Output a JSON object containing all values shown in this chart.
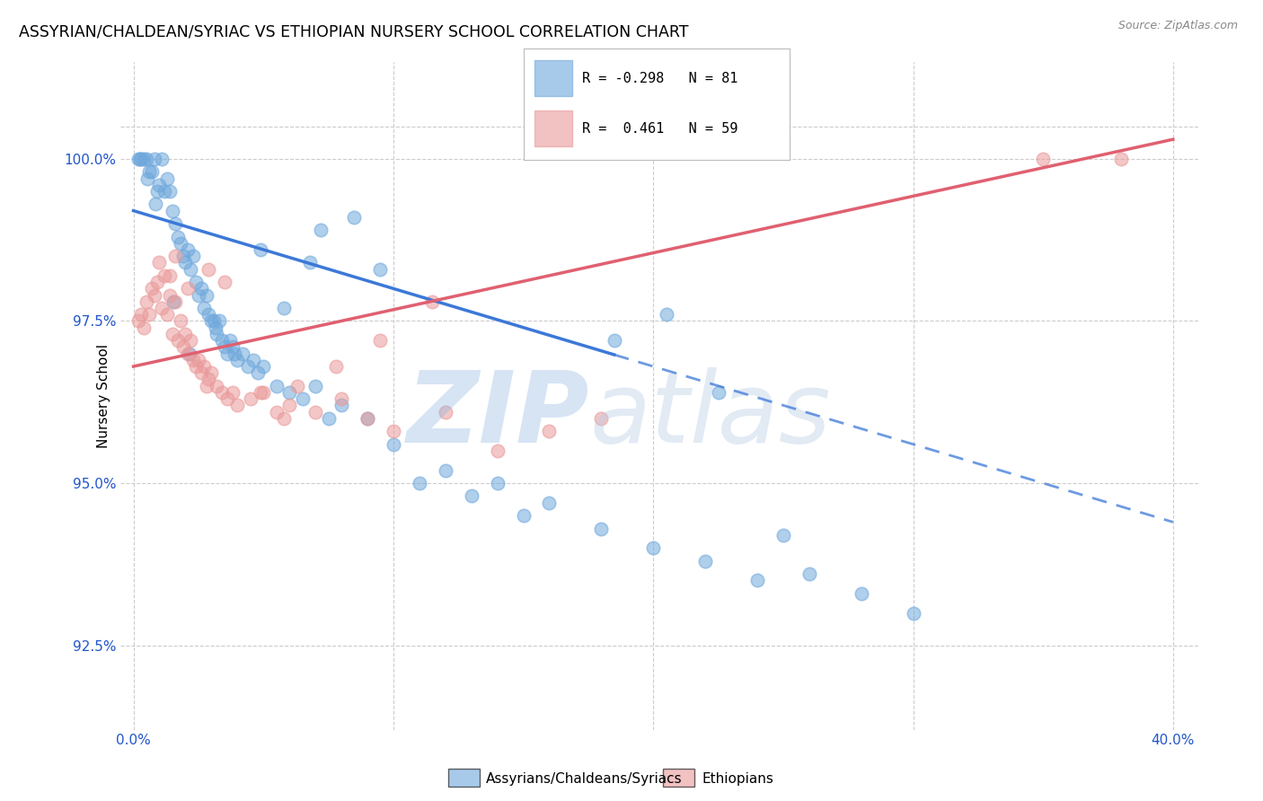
{
  "title": "ASSYRIAN/CHALDEAN/SYRIAC VS ETHIOPIAN NURSERY SCHOOL CORRELATION CHART",
  "source": "Source: ZipAtlas.com",
  "xlabel_blue": "Assyrians/Chaldeans/Syriacs",
  "xlabel_pink": "Ethiopians",
  "ylabel": "Nursery School",
  "xlim": [
    -0.5,
    41.0
  ],
  "ylim": [
    91.2,
    101.5
  ],
  "xticks": [
    0.0,
    10.0,
    20.0,
    30.0,
    40.0
  ],
  "xtick_labels": [
    "0.0%",
    "",
    "",
    "",
    "40.0%"
  ],
  "yticks": [
    92.5,
    95.0,
    97.5,
    100.0
  ],
  "ytick_labels": [
    "92.5%",
    "95.0%",
    "97.5%",
    "100.0%"
  ],
  "blue_R": -0.298,
  "blue_N": 81,
  "pink_R": 0.461,
  "pink_N": 59,
  "blue_color": "#6fa8dc",
  "pink_color": "#ea9999",
  "blue_line_color": "#3c78d8",
  "pink_line_color": "#e06070",
  "blue_scatter_x": [
    0.2,
    0.3,
    0.4,
    0.5,
    0.6,
    0.7,
    0.8,
    0.9,
    1.0,
    1.1,
    1.2,
    1.3,
    1.4,
    1.5,
    1.6,
    1.7,
    1.8,
    1.9,
    2.0,
    2.1,
    2.2,
    2.3,
    2.4,
    2.5,
    2.6,
    2.7,
    2.8,
    2.9,
    3.0,
    3.1,
    3.2,
    3.3,
    3.4,
    3.5,
    3.6,
    3.7,
    3.8,
    3.9,
    4.0,
    4.2,
    4.4,
    4.6,
    4.8,
    5.0,
    5.5,
    6.0,
    6.5,
    7.0,
    7.5,
    8.0,
    9.0,
    10.0,
    11.0,
    12.0,
    13.0,
    14.0,
    15.0,
    16.0,
    18.0,
    20.0,
    22.0,
    24.0,
    25.0,
    26.0,
    28.0,
    30.0,
    18.5,
    20.5,
    22.5,
    9.5,
    8.5,
    7.2,
    6.8,
    5.8,
    4.9,
    3.15,
    2.15,
    1.55,
    0.85,
    0.55,
    0.25
  ],
  "blue_scatter_y": [
    100.0,
    100.0,
    100.0,
    100.0,
    99.8,
    99.8,
    100.0,
    99.5,
    99.6,
    100.0,
    99.5,
    99.7,
    99.5,
    99.2,
    99.0,
    98.8,
    98.7,
    98.5,
    98.4,
    98.6,
    98.3,
    98.5,
    98.1,
    97.9,
    98.0,
    97.7,
    97.9,
    97.6,
    97.5,
    97.5,
    97.3,
    97.5,
    97.2,
    97.1,
    97.0,
    97.2,
    97.1,
    97.0,
    96.9,
    97.0,
    96.8,
    96.9,
    96.7,
    96.8,
    96.5,
    96.4,
    96.3,
    96.5,
    96.0,
    96.2,
    96.0,
    95.6,
    95.0,
    95.2,
    94.8,
    95.0,
    94.5,
    94.7,
    94.3,
    94.0,
    93.8,
    93.5,
    94.2,
    93.6,
    93.3,
    93.0,
    97.2,
    97.6,
    96.4,
    98.3,
    99.1,
    98.9,
    98.4,
    97.7,
    98.6,
    97.4,
    97.0,
    97.8,
    99.3,
    99.7,
    100.0
  ],
  "pink_scatter_x": [
    0.2,
    0.3,
    0.4,
    0.5,
    0.6,
    0.7,
    0.8,
    0.9,
    1.0,
    1.1,
    1.2,
    1.3,
    1.4,
    1.5,
    1.6,
    1.7,
    1.8,
    1.9,
    2.0,
    2.1,
    2.2,
    2.3,
    2.4,
    2.5,
    2.6,
    2.7,
    2.8,
    2.9,
    3.0,
    3.2,
    3.4,
    3.6,
    3.8,
    4.0,
    4.5,
    5.0,
    5.5,
    6.0,
    7.0,
    8.0,
    9.0,
    10.0,
    12.0,
    14.0,
    16.0,
    18.0,
    5.8,
    4.9,
    6.3,
    7.8,
    9.5,
    11.5,
    1.4,
    1.6,
    2.1,
    2.9,
    3.5,
    35.0,
    38.0
  ],
  "pink_scatter_y": [
    97.5,
    97.6,
    97.4,
    97.8,
    97.6,
    98.0,
    97.9,
    98.1,
    98.4,
    97.7,
    98.2,
    97.6,
    97.9,
    97.3,
    97.8,
    97.2,
    97.5,
    97.1,
    97.3,
    97.0,
    97.2,
    96.9,
    96.8,
    96.9,
    96.7,
    96.8,
    96.5,
    96.6,
    96.7,
    96.5,
    96.4,
    96.3,
    96.4,
    96.2,
    96.3,
    96.4,
    96.1,
    96.2,
    96.1,
    96.3,
    96.0,
    95.8,
    96.1,
    95.5,
    95.8,
    96.0,
    96.0,
    96.4,
    96.5,
    96.8,
    97.2,
    97.8,
    98.2,
    98.5,
    98.0,
    98.3,
    98.1,
    100.0,
    100.0
  ],
  "blue_trend_x0": 0.0,
  "blue_trend_y0": 99.2,
  "blue_trend_x1": 40.0,
  "blue_trend_y1": 94.4,
  "blue_solid_end_x": 18.5,
  "pink_trend_x0": 0.0,
  "pink_trend_y0": 96.8,
  "pink_trend_x1": 40.0,
  "pink_trend_y1": 100.3
}
